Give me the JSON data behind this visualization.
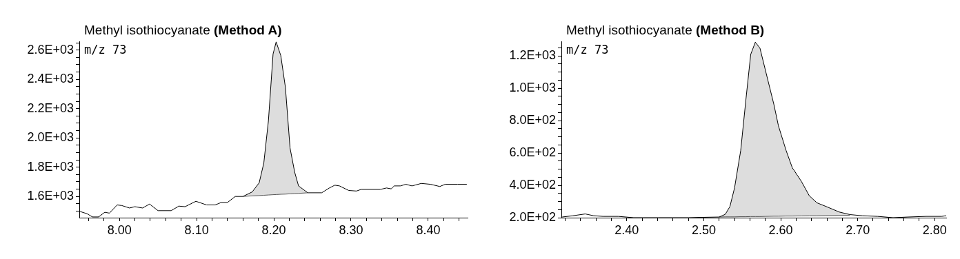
{
  "chart_data": [
    {
      "type": "line",
      "title": "Methyl isothiocyanate (Method A)",
      "annotations": [
        "m/z 73"
      ],
      "grid": false,
      "legend": false,
      "marker": "none",
      "line_style": "solid",
      "xlim": [
        7.948,
        8.451
      ],
      "ylim": [
        1455,
        2660
      ],
      "xticks": [
        {
          "value": 7.96,
          "label": null
        },
        {
          "value": 7.98,
          "label": null
        },
        {
          "value": 8,
          "label": "8.00"
        },
        {
          "value": 8.02,
          "label": null
        },
        {
          "value": 8.04,
          "label": null
        },
        {
          "value": 8.06,
          "label": null
        },
        {
          "value": 8.08,
          "label": null
        },
        {
          "value": 8.1,
          "label": "8.10"
        },
        {
          "value": 8.12,
          "label": null
        },
        {
          "value": 8.14,
          "label": null
        },
        {
          "value": 8.16,
          "label": null
        },
        {
          "value": 8.18,
          "label": null
        },
        {
          "value": 8.2,
          "label": "8.20"
        },
        {
          "value": 8.22,
          "label": null
        },
        {
          "value": 8.24,
          "label": null
        },
        {
          "value": 8.26,
          "label": null
        },
        {
          "value": 8.28,
          "label": null
        },
        {
          "value": 8.3,
          "label": "8.30"
        },
        {
          "value": 8.32,
          "label": null
        },
        {
          "value": 8.34,
          "label": null
        },
        {
          "value": 8.36,
          "label": null
        },
        {
          "value": 8.38,
          "label": null
        },
        {
          "value": 8.4,
          "label": "8.40"
        },
        {
          "value": 8.42,
          "label": null
        },
        {
          "value": 8.44,
          "label": null
        }
      ],
      "yticks": [
        {
          "value": 1500,
          "label": null
        },
        {
          "value": 1550,
          "label": null
        },
        {
          "value": 1600,
          "label": "1.6E+03"
        },
        {
          "value": 1650,
          "label": null
        },
        {
          "value": 1700,
          "label": null
        },
        {
          "value": 1750,
          "label": null
        },
        {
          "value": 1800,
          "label": "1.8E+03"
        },
        {
          "value": 1850,
          "label": null
        },
        {
          "value": 1900,
          "label": null
        },
        {
          "value": 1950,
          "label": null
        },
        {
          "value": 2000,
          "label": "2.0E+03"
        },
        {
          "value": 2050,
          "label": null
        },
        {
          "value": 2100,
          "label": null
        },
        {
          "value": 2150,
          "label": null
        },
        {
          "value": 2200,
          "label": "2.2E+03"
        },
        {
          "value": 2250,
          "label": null
        },
        {
          "value": 2300,
          "label": null
        },
        {
          "value": 2350,
          "label": null
        },
        {
          "value": 2400,
          "label": "2.4E+03"
        },
        {
          "value": 2450,
          "label": null
        },
        {
          "value": 2500,
          "label": null
        },
        {
          "value": 2550,
          "label": null
        },
        {
          "value": 2600,
          "label": "2.6E+03"
        },
        {
          "value": 2650,
          "label": null
        }
      ],
      "series": [
        {
          "color": "#000000",
          "x": [
            7.949,
            7.958,
            7.965,
            7.973,
            7.981,
            7.987,
            7.997,
            8.003,
            8.013,
            8.02,
            8.03,
            8.039,
            8.05,
            8.067,
            8.077,
            8.085,
            8.099,
            8.113,
            8.124,
            8.132,
            8.14,
            8.15,
            8.16,
            8.172,
            8.181,
            8.187,
            8.193,
            8.199,
            8.203,
            8.209,
            8.215,
            8.221,
            8.227,
            8.232,
            8.244,
            8.262,
            8.272,
            8.279,
            8.285,
            8.297,
            8.307,
            8.313,
            8.338,
            8.346,
            8.352,
            8.356,
            8.364,
            8.371,
            8.379,
            8.391,
            8.403,
            8.415,
            8.422,
            8.438,
            8.45
          ],
          "values": [
            1497,
            1482,
            1460,
            1460,
            1492,
            1486,
            1542,
            1538,
            1521,
            1530,
            1521,
            1548,
            1503,
            1503,
            1534,
            1530,
            1567,
            1542,
            1542,
            1559,
            1559,
            1600,
            1600,
            1631,
            1693,
            1828,
            2118,
            2573,
            2656,
            2563,
            2345,
            1931,
            1766,
            1672,
            1625,
            1625,
            1658,
            1677,
            1672,
            1641,
            1637,
            1648,
            1648,
            1658,
            1652,
            1672,
            1672,
            1683,
            1672,
            1689,
            1683,
            1668,
            1683,
            1683,
            1683
          ]
        },
        {
          "type": "line",
          "color": "#555555",
          "x": [
            8.16,
            8.172,
            8.181,
            8.187,
            8.193,
            8.199,
            8.203,
            8.209,
            8.215,
            8.221,
            8.227,
            8.232,
            8.244
          ],
          "values": [
            1600,
            1604,
            1606,
            1608,
            1610,
            1612,
            1613,
            1615,
            1616,
            1618,
            1620,
            1621,
            1625
          ],
          "lower": [
            1600,
            1604,
            1606,
            1608,
            1610,
            1612,
            1613,
            1615,
            1616,
            1618,
            1620,
            1621,
            1625
          ],
          "upper": [
            1600,
            1631,
            1693,
            1828,
            2118,
            2573,
            2656,
            2563,
            2345,
            1931,
            1766,
            1672,
            1625
          ]
        }
      ]
    },
    {
      "type": "line",
      "title": "Methyl isothiocyanate (Method B)",
      "annotations": [
        "m/z 73"
      ],
      "grid": false,
      "legend": false,
      "marker": "none",
      "line_style": "solid",
      "xlim": [
        2.315,
        2.815
      ],
      "ylim": [
        200,
        1290
      ],
      "xticks": [
        {
          "value": 2.32,
          "label": null
        },
        {
          "value": 2.34,
          "label": null
        },
        {
          "value": 2.36,
          "label": null
        },
        {
          "value": 2.38,
          "label": null
        },
        {
          "value": 2.4,
          "label": "2.40"
        },
        {
          "value": 2.42,
          "label": null
        },
        {
          "value": 2.44,
          "label": null
        },
        {
          "value": 2.46,
          "label": null
        },
        {
          "value": 2.48,
          "label": null
        },
        {
          "value": 2.5,
          "label": "2.50"
        },
        {
          "value": 2.52,
          "label": null
        },
        {
          "value": 2.54,
          "label": null
        },
        {
          "value": 2.56,
          "label": null
        },
        {
          "value": 2.58,
          "label": null
        },
        {
          "value": 2.6,
          "label": "2.60"
        },
        {
          "value": 2.62,
          "label": null
        },
        {
          "value": 2.64,
          "label": null
        },
        {
          "value": 2.66,
          "label": null
        },
        {
          "value": 2.68,
          "label": null
        },
        {
          "value": 2.7,
          "label": "2.70"
        },
        {
          "value": 2.72,
          "label": null
        },
        {
          "value": 2.74,
          "label": null
        },
        {
          "value": 2.76,
          "label": null
        },
        {
          "value": 2.78,
          "label": null
        },
        {
          "value": 2.8,
          "label": "2.80"
        }
      ],
      "yticks": [
        {
          "value": 200,
          "label": "2.0E+02"
        },
        {
          "value": 250,
          "label": null
        },
        {
          "value": 300,
          "label": null
        },
        {
          "value": 350,
          "label": null
        },
        {
          "value": 400,
          "label": "4.0E+02"
        },
        {
          "value": 450,
          "label": null
        },
        {
          "value": 500,
          "label": null
        },
        {
          "value": 550,
          "label": null
        },
        {
          "value": 600,
          "label": "6.0E+02"
        },
        {
          "value": 650,
          "label": null
        },
        {
          "value": 700,
          "label": null
        },
        {
          "value": 750,
          "label": null
        },
        {
          "value": 800,
          "label": "8.0E+02"
        },
        {
          "value": 850,
          "label": null
        },
        {
          "value": 900,
          "label": null
        },
        {
          "value": 950,
          "label": null
        },
        {
          "value": 1000,
          "label": "1.0E+03"
        },
        {
          "value": 1050,
          "label": null
        },
        {
          "value": 1100,
          "label": null
        },
        {
          "value": 1150,
          "label": null
        },
        {
          "value": 1200,
          "label": "1.2E+03"
        },
        {
          "value": 1250,
          "label": null
        }
      ],
      "series": [
        {
          "color": "#000000",
          "x": [
            2.316,
            2.33,
            2.346,
            2.357,
            2.369,
            2.389,
            2.409,
            2.421,
            2.441,
            2.46,
            2.48,
            2.496,
            2.52,
            2.528,
            2.534,
            2.54,
            2.548,
            2.555,
            2.561,
            2.567,
            2.573,
            2.581,
            2.591,
            2.597,
            2.607,
            2.615,
            2.627,
            2.637,
            2.647,
            2.659,
            2.676,
            2.69,
            2.706,
            2.726,
            2.746,
            2.765,
            2.789,
            2.809,
            2.815
          ],
          "values": [
            204,
            212,
            223,
            212,
            208,
            208,
            200,
            200,
            200,
            200,
            200,
            202,
            204,
            221,
            269,
            384,
            615,
            941,
            1209,
            1285,
            1248,
            1094,
            902,
            768,
            615,
            509,
            423,
            336,
            292,
            269,
            235,
            219,
            212,
            208,
            200,
            204,
            208,
            208,
            212
          ]
        },
        {
          "type": "line",
          "color": "#555555",
          "x": [
            2.52,
            2.528,
            2.534,
            2.54,
            2.548,
            2.555,
            2.561,
            2.567,
            2.573,
            2.581,
            2.591,
            2.597,
            2.607,
            2.615,
            2.627,
            2.637,
            2.647,
            2.659,
            2.676,
            2.69
          ],
          "values": [
            204,
            205,
            205,
            205,
            206,
            206,
            207,
            207,
            207,
            208,
            209,
            209,
            210,
            210,
            211,
            212,
            212,
            213,
            214,
            215
          ],
          "lower": [
            204,
            205,
            205,
            205,
            206,
            206,
            207,
            207,
            207,
            208,
            209,
            209,
            210,
            210,
            211,
            212,
            212,
            213,
            214,
            215
          ],
          "upper": [
            204,
            221,
            269,
            384,
            615,
            941,
            1209,
            1285,
            1248,
            1094,
            902,
            768,
            615,
            509,
            423,
            336,
            292,
            269,
            235,
            219
          ]
        }
      ]
    }
  ]
}
